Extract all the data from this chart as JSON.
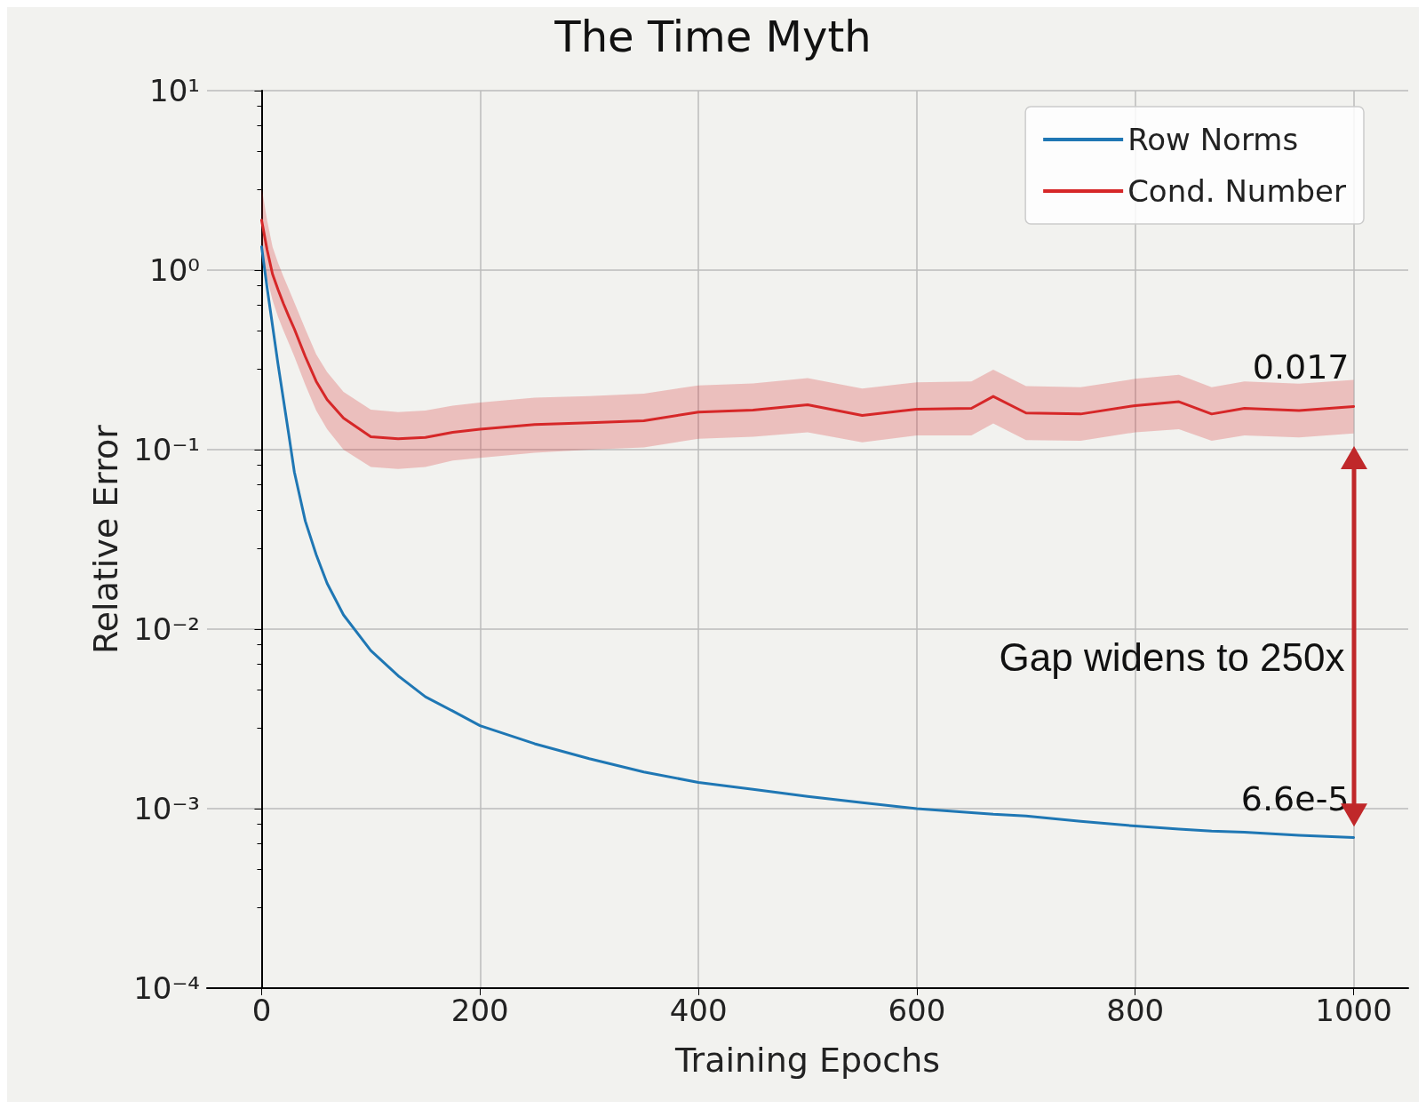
{
  "chart_data": {
    "type": "line",
    "title": "The Time Myth",
    "xlabel": "Training Epochs",
    "ylabel": "Relative Error",
    "x": [
      0,
      5,
      10,
      15,
      20,
      25,
      30,
      40,
      50,
      60,
      75,
      100,
      125,
      150,
      175,
      200,
      250,
      300,
      350,
      400,
      450,
      500,
      550,
      600,
      650,
      670,
      700,
      750,
      800,
      840,
      870,
      900,
      950,
      1000
    ],
    "series": [
      {
        "name": "Row Norms",
        "color": "#1f77b4",
        "values": [
          1.35,
          0.8,
          0.49,
          0.3,
          0.19,
          0.12,
          0.075,
          0.04,
          0.026,
          0.018,
          0.012,
          0.0076,
          0.0055,
          0.0042,
          0.0035,
          0.0029,
          0.0023,
          0.0019,
          0.0016,
          0.0014,
          0.00128,
          0.00117,
          0.00108,
          0.001,
          0.00095,
          0.00093,
          0.00091,
          0.00085,
          0.0008,
          0.00077,
          0.00075,
          0.00074,
          0.00071,
          0.00069
        ]
      },
      {
        "name": "Cond. Number",
        "color": "#d62728",
        "values": [
          1.9,
          1.3,
          0.95,
          0.78,
          0.65,
          0.55,
          0.47,
          0.33,
          0.24,
          0.19,
          0.15,
          0.118,
          0.115,
          0.117,
          0.125,
          0.13,
          0.138,
          0.141,
          0.145,
          0.162,
          0.166,
          0.178,
          0.155,
          0.168,
          0.17,
          0.198,
          0.16,
          0.158,
          0.176,
          0.185,
          0.158,
          0.17,
          0.165,
          0.174
        ],
        "lower": [
          1.3,
          0.9,
          0.68,
          0.55,
          0.46,
          0.39,
          0.33,
          0.23,
          0.165,
          0.13,
          0.1,
          0.08,
          0.078,
          0.08,
          0.087,
          0.09,
          0.096,
          0.1,
          0.103,
          0.115,
          0.118,
          0.125,
          0.11,
          0.12,
          0.12,
          0.14,
          0.113,
          0.112,
          0.125,
          0.13,
          0.112,
          0.12,
          0.117,
          0.123
        ],
        "upper": [
          2.9,
          1.9,
          1.35,
          1.1,
          0.92,
          0.78,
          0.66,
          0.47,
          0.34,
          0.27,
          0.21,
          0.167,
          0.162,
          0.165,
          0.176,
          0.183,
          0.195,
          0.199,
          0.205,
          0.228,
          0.234,
          0.25,
          0.219,
          0.237,
          0.24,
          0.279,
          0.226,
          0.223,
          0.248,
          0.261,
          0.223,
          0.24,
          0.233,
          0.245
        ]
      }
    ],
    "log": "y",
    "xlim": [
      -50,
      1050
    ],
    "xticks": [
      0,
      200,
      400,
      600,
      800,
      1000
    ],
    "ylim": [
      0.0001,
      10
    ],
    "yticks": [
      {
        "value": 0.0001,
        "label": "10⁻⁴"
      },
      {
        "value": 0.001,
        "label": "10⁻³"
      },
      {
        "value": 0.01,
        "label": "10⁻²"
      },
      {
        "value": 0.1,
        "label": "10⁻¹"
      },
      {
        "value": 1,
        "label": "10⁰"
      },
      {
        "value": 10,
        "label": "10¹"
      }
    ],
    "grid": true,
    "legend": "top right",
    "marker": "none",
    "line_style": "solid",
    "annotations": [
      {
        "text": "0.017",
        "x": 1000,
        "y": 0.174
      },
      {
        "text": "6.6e-5",
        "x": 1000,
        "y": 0.00069
      },
      "Gap widens to 250x"
    ]
  }
}
